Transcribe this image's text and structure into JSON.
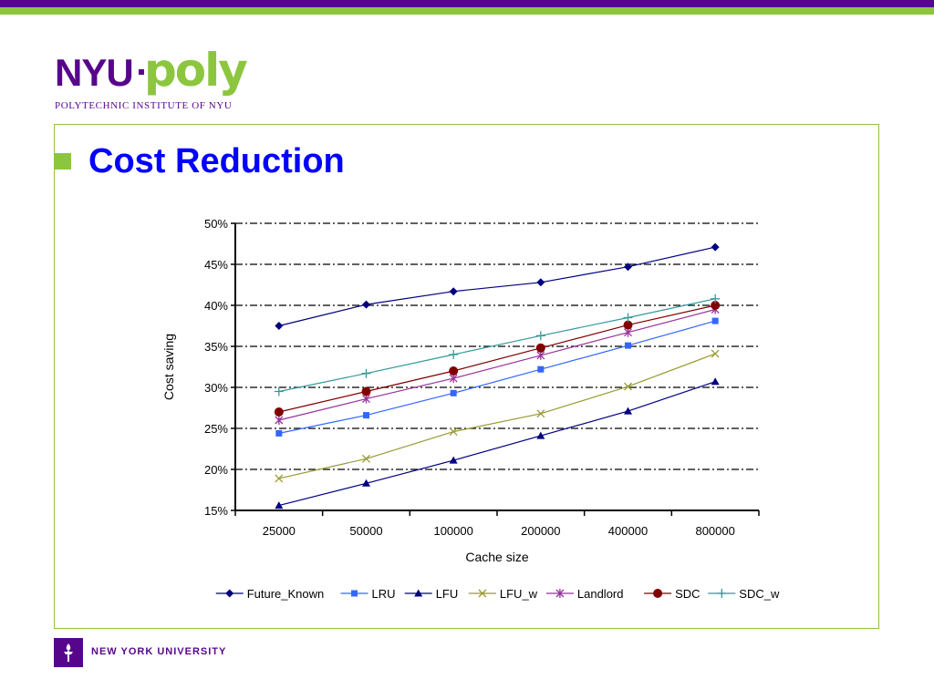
{
  "header": {
    "logo_nyu": "NYU",
    "logo_poly": "poly",
    "logo_subtitle": "POLYTECHNIC INSTITUTE OF NYU"
  },
  "slide": {
    "title": "Cost Reduction"
  },
  "footer": {
    "university": "NEW YORK UNIVERSITY"
  },
  "colors": {
    "nyu_purple": "#57068c",
    "poly_green": "#8cc63f",
    "title_blue": "#0000ff"
  },
  "chart_data": {
    "type": "line",
    "title": "",
    "xlabel": "Cache size",
    "ylabel": "Cost saving",
    "categories": [
      "25000",
      "50000",
      "100000",
      "200000",
      "400000",
      "800000"
    ],
    "ylim": [
      15,
      50
    ],
    "yticks": [
      "15%",
      "20%",
      "25%",
      "30%",
      "35%",
      "40%",
      "45%",
      "50%"
    ],
    "grid": "horizontal dash-dot",
    "legend_position": "bottom",
    "series": [
      {
        "name": "Future_Known",
        "color": "#000080",
        "marker": "diamond",
        "values": [
          37.5,
          40.1,
          41.7,
          42.8,
          44.7,
          47.1
        ]
      },
      {
        "name": "LRU",
        "color": "#3366ff",
        "marker": "square",
        "values": [
          24.4,
          26.6,
          29.3,
          32.2,
          35.1,
          38.1
        ]
      },
      {
        "name": "LFU",
        "color": "#000080",
        "marker": "triangle",
        "values": [
          15.6,
          18.3,
          21.1,
          24.1,
          27.1,
          30.7
        ]
      },
      {
        "name": "LFU_w",
        "color": "#999933",
        "marker": "x",
        "values": [
          18.9,
          21.3,
          24.6,
          26.8,
          30.1,
          34.1
        ]
      },
      {
        "name": "Landlord",
        "color": "#993399",
        "marker": "star",
        "values": [
          26.0,
          28.6,
          31.1,
          33.9,
          36.7,
          39.5
        ]
      },
      {
        "name": "SDC",
        "color": "#800000",
        "marker": "circle",
        "values": [
          27.0,
          29.5,
          32.0,
          34.8,
          37.6,
          40.0
        ]
      },
      {
        "name": "SDC_w",
        "color": "#339999",
        "marker": "plus",
        "values": [
          29.5,
          31.7,
          34.0,
          36.3,
          38.5,
          40.8
        ]
      }
    ]
  }
}
